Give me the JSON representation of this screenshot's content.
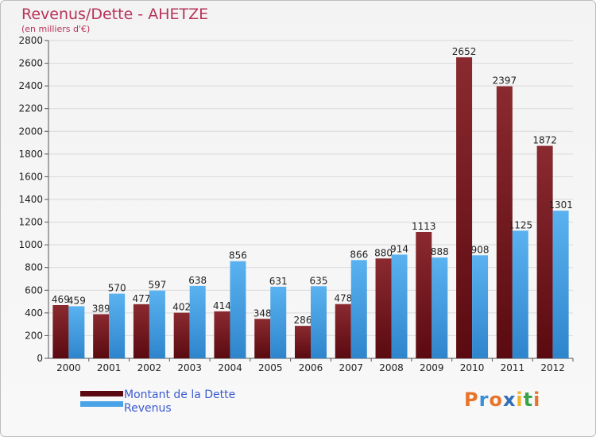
{
  "chart_data": {
    "type": "bar",
    "title": "Revenus/Dette - AHETZE",
    "subtitle": "(en milliers d'€)",
    "categories": [
      "2000",
      "2001",
      "2002",
      "2003",
      "2004",
      "2005",
      "2006",
      "2007",
      "2008",
      "2009",
      "2010",
      "2011",
      "2012"
    ],
    "series": [
      {
        "name": "Montant de la Dette",
        "color": "#7a1c22",
        "values": [
          469,
          389,
          477,
          402,
          414,
          348,
          286,
          478,
          880,
          1113,
          2652,
          2397,
          1872
        ]
      },
      {
        "name": "Revenus",
        "color": "#4aa3e6",
        "values": [
          459,
          570,
          597,
          638,
          856,
          631,
          635,
          866,
          914,
          888,
          908,
          1125,
          1301
        ]
      }
    ],
    "ylim": [
      0,
      2800
    ],
    "yticks": [
      0,
      200,
      400,
      600,
      800,
      1000,
      1200,
      1400,
      1600,
      1800,
      2000,
      2200,
      2400,
      2600,
      2800
    ],
    "grid": true,
    "legend_position": "bottom-left"
  },
  "logo": {
    "letters": [
      "P",
      "r",
      "o",
      "x",
      "i",
      "t",
      "i"
    ],
    "colors": [
      "#e8742a",
      "#3a8fd6",
      "#e8742a",
      "#2f6fb8",
      "#f0b32a",
      "#3aa34a",
      "#e8742a"
    ]
  }
}
